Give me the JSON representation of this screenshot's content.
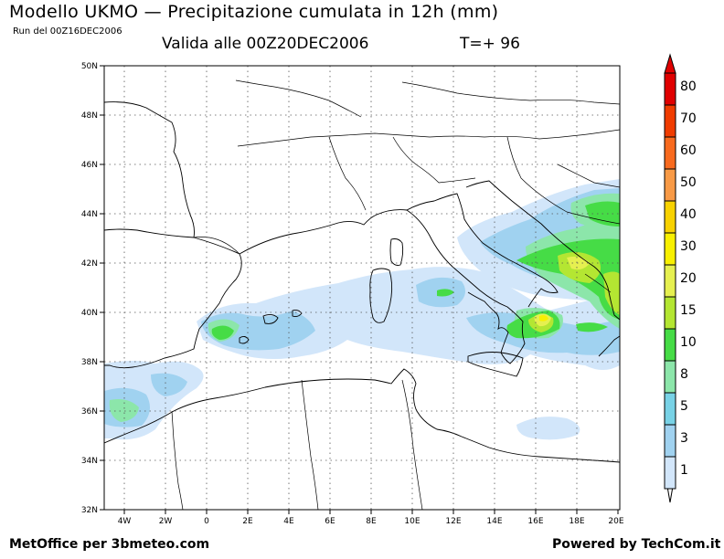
{
  "header": {
    "title": "Modello UKMO — Precipitazione cumulata in 12h (mm)",
    "run": "Run del 00Z16DEC2006",
    "valid": "Valida alle 00Z20DEC2006",
    "timestep": "T=+ 96"
  },
  "map": {
    "lat_labels": [
      "50N",
      "48N",
      "46N",
      "44N",
      "42N",
      "40N",
      "38N",
      "36N",
      "34N",
      "32N"
    ],
    "lon_labels": [
      "4W",
      "2W",
      "0",
      "2E",
      "4E",
      "6E",
      "8E",
      "10E",
      "12E",
      "14E",
      "16E",
      "18E",
      "20E"
    ]
  },
  "colorbar": {
    "labels": [
      "80",
      "70",
      "60",
      "50",
      "40",
      "30",
      "20",
      "15",
      "10",
      "8",
      "5",
      "3",
      "1"
    ],
    "colors": [
      "#e00000",
      "#f03c00",
      "#f86a1e",
      "#f89a46",
      "#f8d200",
      "#f8f000",
      "#e6f050",
      "#b4e632",
      "#46dc46",
      "#8ce6aa",
      "#78d2e6",
      "#a0d2f0",
      "#d2e6fa"
    ]
  },
  "footer": {
    "left": "MetOffice per 3bmeteo.com",
    "right": "Powered by TechCom.it"
  }
}
